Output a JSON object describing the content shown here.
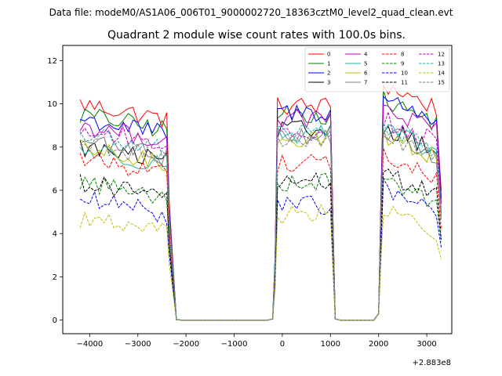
{
  "chart_data": {
    "type": "line",
    "suptitle": "Data file: modeM0/AS1A06_006T01_9000002720_18363cztM0_level2_quad_clean.evt",
    "title": "Quadrant 2 module wise count rates with 100.0s bins.",
    "xlabel": "",
    "ylabel": "",
    "x_offset_label": "+2.883e8",
    "xlim": [
      -4560,
      3520
    ],
    "ylim": [
      -0.63,
      12.7
    ],
    "xticks": [
      -4000,
      -3000,
      -2000,
      -1000,
      0,
      1000,
      2000,
      3000
    ],
    "xtick_labels": [
      "−4000",
      "−3000",
      "−2000",
      "−1000",
      "0",
      "1000",
      "2000",
      "3000"
    ],
    "yticks": [
      0,
      2,
      4,
      6,
      8,
      10,
      12
    ],
    "ytick_labels": [
      "0",
      "2",
      "4",
      "6",
      "8",
      "10",
      "12"
    ],
    "legend_location": "top-right",
    "segments": [
      {
        "start": -4200,
        "end": -2400,
        "fall_end": -2200
      },
      {
        "start": -100,
        "end": 1000,
        "rise_start": -200,
        "fall_end": 1100
      },
      {
        "start": 2100,
        "end": 3300,
        "rise_start": 2000,
        "fall_end": 3300
      }
    ],
    "series": [
      {
        "name": "0",
        "color": "#ff0000",
        "dash": "solid",
        "levels": [
          10.0,
          9.9,
          10.9
        ]
      },
      {
        "name": "1",
        "color": "#008000",
        "dash": "solid",
        "levels": [
          9.5,
          9.5,
          10.2
        ]
      },
      {
        "name": "2",
        "color": "#0000ff",
        "dash": "solid",
        "levels": [
          9.3,
          9.6,
          10.3
        ]
      },
      {
        "name": "3",
        "color": "#000000",
        "dash": "solid",
        "levels": [
          8.0,
          8.8,
          9.0
        ]
      },
      {
        "name": "4",
        "color": "#bf00bf",
        "dash": "solid",
        "levels": [
          9.0,
          9.3,
          9.8
        ]
      },
      {
        "name": "5",
        "color": "#20b2aa",
        "dash": "solid",
        "levels": [
          7.9,
          8.6,
          8.8
        ]
      },
      {
        "name": "6",
        "color": "#bfbf00",
        "dash": "solid",
        "levels": [
          7.9,
          8.4,
          8.6
        ]
      },
      {
        "name": "7",
        "color": "#808080",
        "dash": "solid",
        "levels": [
          8.3,
          8.6,
          8.7
        ]
      },
      {
        "name": "8",
        "color": "#ff0000",
        "dash": "dashed",
        "levels": [
          7.5,
          7.3,
          7.6
        ]
      },
      {
        "name": "9",
        "color": "#008000",
        "dash": "dashed",
        "levels": [
          6.4,
          6.4,
          6.6
        ]
      },
      {
        "name": "10",
        "color": "#0000ff",
        "dash": "dashed",
        "levels": [
          5.6,
          5.3,
          6.1
        ]
      },
      {
        "name": "11",
        "color": "#000000",
        "dash": "dashed",
        "levels": [
          6.4,
          6.4,
          6.8
        ]
      },
      {
        "name": "12",
        "color": "#bf00bf",
        "dash": "dashed",
        "levels": [
          8.8,
          8.7,
          9.3
        ]
      },
      {
        "name": "13",
        "color": "#20b2aa",
        "dash": "dashed",
        "levels": [
          8.6,
          8.6,
          9.0
        ]
      },
      {
        "name": "14",
        "color": "#bfbf00",
        "dash": "dashed",
        "levels": [
          4.7,
          4.9,
          5.1
        ]
      },
      {
        "name": "15",
        "color": "#808080",
        "dash": "dashed",
        "levels": [
          8.2,
          8.3,
          8.5
        ]
      }
    ]
  }
}
